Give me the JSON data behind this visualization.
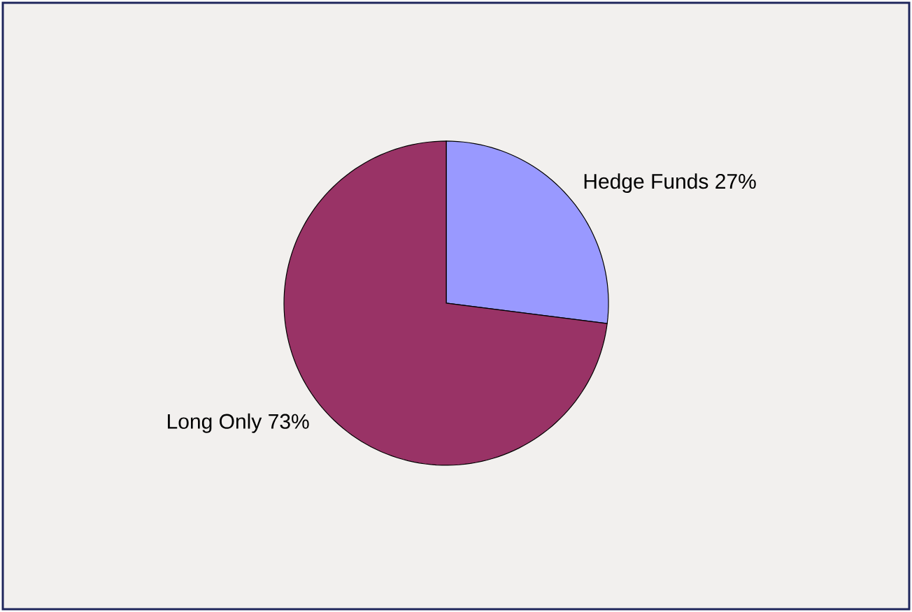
{
  "chart_data": {
    "type": "pie",
    "categories": [
      "Hedge Funds",
      "Long Only"
    ],
    "values": [
      27,
      73
    ],
    "value_labels": [
      "27%",
      "73%"
    ],
    "colors": [
      "#9999ff",
      "#993366"
    ]
  }
}
